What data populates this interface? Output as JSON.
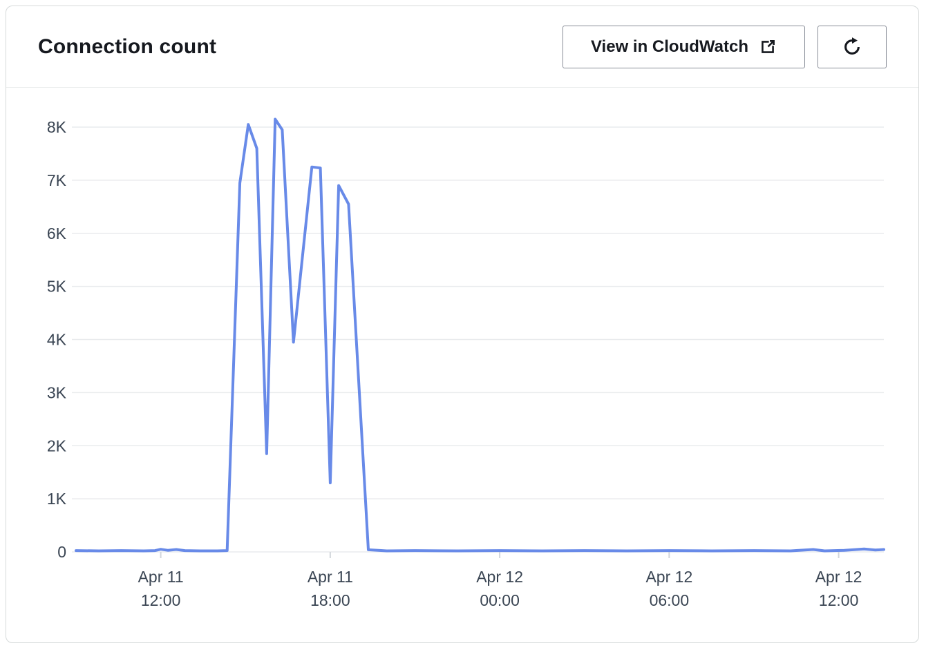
{
  "header": {
    "title": "Connection count",
    "view_button_label": "View in CloudWatch"
  },
  "icons": {
    "external_link": "external-link-icon",
    "refresh": "refresh-icon"
  },
  "chart_data": {
    "type": "line",
    "title": "Connection count",
    "x_unit": "hours since Apr 11 00:00",
    "x_range": [
      9.0,
      37.6
    ],
    "y_range": [
      0,
      8300
    ],
    "grid": "horizontal",
    "legend": "none",
    "colors": {
      "line": "#688ae8",
      "grid": "#e9ebed",
      "tick": "#d2d6dc",
      "tick_text": "#3a4553"
    },
    "y_ticks": [
      {
        "v": 0,
        "label": "0"
      },
      {
        "v": 1000,
        "label": "1K"
      },
      {
        "v": 2000,
        "label": "2K"
      },
      {
        "v": 3000,
        "label": "3K"
      },
      {
        "v": 4000,
        "label": "4K"
      },
      {
        "v": 5000,
        "label": "5K"
      },
      {
        "v": 6000,
        "label": "6K"
      },
      {
        "v": 7000,
        "label": "7K"
      },
      {
        "v": 8000,
        "label": "8K"
      }
    ],
    "x_ticks": [
      {
        "t": 12,
        "label1": "Apr 11",
        "label2": "12:00"
      },
      {
        "t": 18,
        "label1": "Apr 11",
        "label2": "18:00"
      },
      {
        "t": 24,
        "label1": "Apr 12",
        "label2": "00:00"
      },
      {
        "t": 30,
        "label1": "Apr 12",
        "label2": "06:00"
      },
      {
        "t": 36,
        "label1": "Apr 12",
        "label2": "12:00"
      }
    ],
    "series": [
      {
        "name": "Connection count",
        "color": "#688ae8",
        "points": [
          [
            9.0,
            25
          ],
          [
            9.8,
            20
          ],
          [
            10.6,
            25
          ],
          [
            11.4,
            20
          ],
          [
            11.8,
            25
          ],
          [
            12.0,
            50
          ],
          [
            12.25,
            30
          ],
          [
            12.55,
            45
          ],
          [
            12.85,
            25
          ],
          [
            13.4,
            20
          ],
          [
            14.0,
            20
          ],
          [
            14.35,
            25
          ],
          [
            14.8,
            6950
          ],
          [
            15.1,
            8050
          ],
          [
            15.4,
            7600
          ],
          [
            15.75,
            1850
          ],
          [
            16.05,
            8150
          ],
          [
            16.3,
            7950
          ],
          [
            16.7,
            3950
          ],
          [
            17.35,
            7250
          ],
          [
            17.65,
            7230
          ],
          [
            18.0,
            1300
          ],
          [
            18.3,
            6900
          ],
          [
            18.65,
            6550
          ],
          [
            19.35,
            40
          ],
          [
            20.0,
            20
          ],
          [
            21.0,
            25
          ],
          [
            22.5,
            20
          ],
          [
            24.0,
            25
          ],
          [
            25.5,
            20
          ],
          [
            27.0,
            25
          ],
          [
            28.5,
            20
          ],
          [
            30.0,
            25
          ],
          [
            31.5,
            20
          ],
          [
            33.0,
            25
          ],
          [
            34.3,
            20
          ],
          [
            35.1,
            45
          ],
          [
            35.5,
            20
          ],
          [
            36.2,
            30
          ],
          [
            36.9,
            55
          ],
          [
            37.3,
            35
          ],
          [
            37.6,
            45
          ]
        ]
      }
    ]
  }
}
